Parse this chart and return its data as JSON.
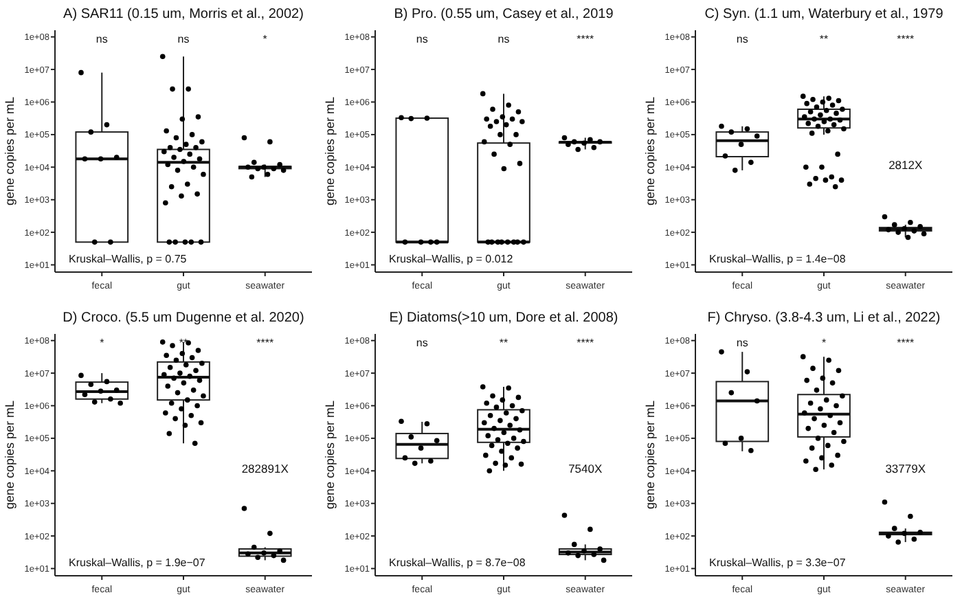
{
  "chart_data": [
    {
      "type": "box",
      "title": "A) SAR11 (0.15 um, Morris et al., 2002)",
      "ylabel": "gene copies per mL",
      "categories": [
        "fecal",
        "gut",
        "seawater"
      ],
      "log": true,
      "grid": false,
      "ylim": [
        6,
        160000000
      ],
      "yticks": [
        {
          "value": 10,
          "label": "1e+01"
        },
        {
          "value": 100,
          "label": "1e+02"
        },
        {
          "value": 1000,
          "label": "1e+03"
        },
        {
          "value": 10000,
          "label": "1e+04"
        },
        {
          "value": 100000,
          "label": "1e+05"
        },
        {
          "value": 1000000,
          "label": "1e+06"
        },
        {
          "value": 10000000,
          "label": "1e+07"
        },
        {
          "value": 100000000,
          "label": "1e+08"
        }
      ],
      "boxes": [
        {
          "low": 50,
          "q1": 50,
          "median": 18000,
          "q3": 120000,
          "high": 8000000
        },
        {
          "low": 50,
          "q1": 50,
          "median": 14000,
          "q3": 35000,
          "high": 25000000
        },
        {
          "low": 5000,
          "q1": 9000,
          "median": 10000,
          "q3": 10500,
          "high": 12000
        }
      ],
      "series": [
        {
          "type": "scatter",
          "color": "#000000",
          "x": [
            "fecal",
            "fecal",
            "fecal",
            "fecal",
            "fecal",
            "fecal",
            "fecal",
            "fecal"
          ],
          "values": [
            8000000.0,
            200000.0,
            120000.0,
            20000.0,
            18000.0,
            18000.0,
            50,
            50
          ]
        },
        {
          "type": "scatter",
          "color": "#000000",
          "x": [
            "gut",
            "gut",
            "gut",
            "gut",
            "gut",
            "gut",
            "gut",
            "gut",
            "gut",
            "gut",
            "gut",
            "gut",
            "gut",
            "gut",
            "gut",
            "gut",
            "gut",
            "gut",
            "gut",
            "gut",
            "gut",
            "gut",
            "gut",
            "gut",
            "gut",
            "gut",
            "gut",
            "gut",
            "gut",
            "gut",
            "gut",
            "gut"
          ],
          "values": [
            25000000.0,
            2500000.0,
            2500000.0,
            350000.0,
            300000.0,
            130000.0,
            100000.0,
            80000.0,
            60000.0,
            50000.0,
            40000.0,
            40000.0,
            35000.0,
            30000.0,
            25000.0,
            20000.0,
            18000.0,
            15000.0,
            12000.0,
            10000.0,
            8000.0,
            6000.0,
            3000.0,
            2500.0,
            1500.0,
            1300.0,
            800.0,
            50,
            50,
            50,
            50,
            50
          ]
        },
        {
          "type": "scatter",
          "color": "#000000",
          "x": [
            "seawater",
            "seawater",
            "seawater",
            "seawater",
            "seawater",
            "seawater",
            "seawater",
            "seawater",
            "seawater",
            "seawater",
            "seawater"
          ],
          "values": [
            80000.0,
            60000.0,
            14000.0,
            12000.0,
            10000.0,
            10000.0,
            9000.0,
            9000.0,
            8000.0,
            6000.0,
            5000.0
          ]
        }
      ],
      "annotations": [
        "ns",
        "ns",
        "*",
        "Kruskal–Wallis, p = 0.75"
      ]
    },
    {
      "type": "box",
      "title": "B) Pro. (0.55 um, Casey et al., 2019",
      "ylabel": "gene copies per mL",
      "categories": [
        "fecal",
        "gut",
        "seawater"
      ],
      "log": true,
      "grid": false,
      "ylim": [
        6,
        160000000
      ],
      "yticks": [
        {
          "value": 10,
          "label": "1e+01"
        },
        {
          "value": 100,
          "label": "1e+02"
        },
        {
          "value": 1000,
          "label": "1e+03"
        },
        {
          "value": 10000,
          "label": "1e+04"
        },
        {
          "value": 100000,
          "label": "1e+05"
        },
        {
          "value": 1000000,
          "label": "1e+06"
        },
        {
          "value": 10000000,
          "label": "1e+07"
        },
        {
          "value": 100000000,
          "label": "1e+08"
        }
      ],
      "boxes": [
        {
          "low": 50,
          "q1": 50,
          "median": 50,
          "q3": 320000,
          "high": 330000
        },
        {
          "low": 50,
          "q1": 50,
          "median": 50,
          "q3": 55000,
          "high": 1800000
        },
        {
          "low": 35000,
          "q1": 55000,
          "median": 58000,
          "q3": 60000,
          "high": 80000
        }
      ],
      "series": [
        {
          "type": "scatter",
          "color": "#000000",
          "x": [
            "fecal",
            "fecal",
            "fecal",
            "fecal",
            "fecal",
            "fecal",
            "fecal"
          ],
          "values": [
            330000.0,
            320000.0,
            310000.0,
            50,
            50,
            50,
            50
          ]
        },
        {
          "type": "scatter",
          "color": "#000000",
          "x": [
            "gut",
            "gut",
            "gut",
            "gut",
            "gut",
            "gut",
            "gut",
            "gut",
            "gut",
            "gut",
            "gut",
            "gut",
            "gut",
            "gut",
            "gut",
            "gut",
            "gut",
            "gut",
            "gut",
            "gut",
            "gut",
            "gut",
            "gut",
            "gut",
            "gut",
            "gut"
          ],
          "values": [
            1800000.0,
            800000.0,
            600000.0,
            500000.0,
            350000.0,
            300000.0,
            300000.0,
            250000.0,
            250000.0,
            200000.0,
            180000.0,
            100000.0,
            100000.0,
            60000.0,
            50000.0,
            25000.0,
            13000.0,
            9000.0,
            50,
            50,
            50,
            50,
            50,
            50,
            50,
            50
          ]
        },
        {
          "type": "scatter",
          "color": "#000000",
          "x": [
            "seawater",
            "seawater",
            "seawater",
            "seawater",
            "seawater",
            "seawater",
            "seawater",
            "seawater"
          ],
          "values": [
            80000.0,
            70000.0,
            60000.0,
            60000.0,
            55000.0,
            50000.0,
            40000.0,
            35000.0
          ]
        }
      ],
      "annotations": [
        "ns",
        "ns",
        "****",
        "Kruskal–Wallis, p = 0.012"
      ]
    },
    {
      "type": "box",
      "title": "C) Syn. (1.1 um, Waterbury et al., 1979",
      "ylabel": "gene copies per mL",
      "categories": [
        "fecal",
        "gut",
        "seawater"
      ],
      "log": true,
      "grid": false,
      "ylim": [
        6,
        160000000
      ],
      "yticks": [
        {
          "value": 10,
          "label": "1e+01"
        },
        {
          "value": 100,
          "label": "1e+02"
        },
        {
          "value": 1000,
          "label": "1e+03"
        },
        {
          "value": 10000,
          "label": "1e+04"
        },
        {
          "value": 100000,
          "label": "1e+05"
        },
        {
          "value": 1000000,
          "label": "1e+06"
        },
        {
          "value": 10000000,
          "label": "1e+07"
        },
        {
          "value": 100000000,
          "label": "1e+08"
        }
      ],
      "boxes": [
        {
          "low": 8000,
          "q1": 21000,
          "median": 65000,
          "q3": 120000,
          "high": 180000
        },
        {
          "low": 100000,
          "q1": 160000,
          "median": 300000,
          "q3": 600000,
          "high": 1500000
        },
        {
          "low": 70,
          "q1": 110,
          "median": 125,
          "q3": 140,
          "high": 170
        }
      ],
      "series": [
        {
          "type": "scatter",
          "color": "#000000",
          "x": [
            "fecal",
            "fecal",
            "fecal",
            "fecal",
            "fecal",
            "fecal",
            "fecal",
            "fecal"
          ],
          "values": [
            180000.0,
            150000.0,
            120000.0,
            90000.0,
            50000.0,
            22000.0,
            14000.0,
            8000.0
          ]
        },
        {
          "type": "scatter",
          "color": "#000000",
          "x": [
            "gut",
            "gut",
            "gut",
            "gut",
            "gut",
            "gut",
            "gut",
            "gut",
            "gut",
            "gut",
            "gut",
            "gut",
            "gut",
            "gut",
            "gut",
            "gut",
            "gut",
            "gut",
            "gut",
            "gut",
            "gut",
            "gut",
            "gut",
            "gut",
            "gut",
            "gut",
            "gut",
            "gut",
            "gut",
            "gut",
            "gut",
            "gut",
            "gut"
          ],
          "values": [
            1500000.0,
            1300000.0,
            1200000.0,
            1100000.0,
            1000000.0,
            900000.0,
            800000.0,
            700000.0,
            600000.0,
            550000.0,
            500000.0,
            450000.0,
            400000.0,
            350000.0,
            300000.0,
            300000.0,
            280000.0,
            250000.0,
            220000.0,
            200000.0,
            180000.0,
            150000.0,
            130000.0,
            110000.0,
            25000.0,
            10000.0,
            10000.0,
            5000.0,
            4500.0,
            4000.0,
            4000.0,
            3000.0,
            2500.0
          ]
        },
        {
          "type": "scatter",
          "color": "#000000",
          "x": [
            "seawater",
            "seawater",
            "seawater",
            "seawater",
            "seawater",
            "seawater",
            "seawater",
            "seawater",
            "seawater",
            "seawater"
          ],
          "values": [
            300,
            200,
            170,
            150,
            130,
            120,
            110,
            100,
            90,
            70
          ]
        }
      ],
      "annotations": [
        "ns",
        "**",
        "****",
        "2812X",
        "Kruskal–Wallis, p = 1.4e−08"
      ]
    },
    {
      "type": "box",
      "title": "D) Croco. (5.5 um Dugenne et al. 2020)",
      "ylabel": "gene copies per mL",
      "categories": [
        "fecal",
        "gut",
        "seawater"
      ],
      "log": true,
      "grid": false,
      "ylim": [
        6,
        160000000
      ],
      "yticks": [
        {
          "value": 10,
          "label": "1e+01"
        },
        {
          "value": 100,
          "label": "1e+02"
        },
        {
          "value": 1000,
          "label": "1e+03"
        },
        {
          "value": 10000,
          "label": "1e+04"
        },
        {
          "value": 100000,
          "label": "1e+05"
        },
        {
          "value": 1000000,
          "label": "1e+06"
        },
        {
          "value": 10000000,
          "label": "1e+07"
        },
        {
          "value": 100000000,
          "label": "1e+08"
        }
      ],
      "boxes": [
        {
          "low": 1200000,
          "q1": 1600000,
          "median": 2700000,
          "q3": 5300000,
          "high": 10000000
        },
        {
          "low": 70000,
          "q1": 1500000,
          "median": 7500000,
          "q3": 22000000,
          "high": 90000000
        },
        {
          "low": 18,
          "q1": 24,
          "median": 30,
          "q3": 40,
          "high": 45
        }
      ],
      "series": [
        {
          "type": "scatter",
          "color": "#000000",
          "x": [
            "fecal",
            "fecal",
            "fecal",
            "fecal",
            "fecal",
            "fecal",
            "fecal",
            "fecal",
            "fecal"
          ],
          "values": [
            8500000.0,
            5500000.0,
            4500000.0,
            3000000.0,
            2800000.0,
            2200000.0,
            1600000.0,
            1300000.0,
            1200000.0
          ]
        },
        {
          "type": "scatter",
          "color": "#000000",
          "x": [
            "gut",
            "gut",
            "gut",
            "gut",
            "gut",
            "gut",
            "gut",
            "gut",
            "gut",
            "gut",
            "gut",
            "gut",
            "gut",
            "gut",
            "gut",
            "gut",
            "gut",
            "gut",
            "gut",
            "gut",
            "gut",
            "gut",
            "gut",
            "gut",
            "gut",
            "gut",
            "gut",
            "gut",
            "gut",
            "gut",
            "gut",
            "gut",
            "gut"
          ],
          "values": [
            90000000.0,
            85000000.0,
            70000000.0,
            50000000.0,
            40000000.0,
            35000000.0,
            30000000.0,
            25000000.0,
            20000000.0,
            18000000.0,
            15000000.0,
            12000000.0,
            10000000.0,
            9000000.0,
            8000000.0,
            7000000.0,
            6000000.0,
            5000000.0,
            4000000.0,
            3000000.0,
            2500000.0,
            2000000.0,
            1500000.0,
            1200000.0,
            1000000.0,
            800000.0,
            600000.0,
            500000.0,
            400000.0,
            300000.0,
            250000.0,
            140000.0,
            70000.0
          ]
        },
        {
          "type": "scatter",
          "color": "#000000",
          "x": [
            "seawater",
            "seawater",
            "seawater",
            "seawater",
            "seawater",
            "seawater",
            "seawater",
            "seawater",
            "seawater"
          ],
          "values": [
            700,
            120,
            45,
            35,
            30,
            28,
            25,
            22,
            18
          ]
        }
      ],
      "annotations": [
        "*",
        "**",
        "****",
        "282891X",
        "Kruskal–Wallis, p = 1.9e−07"
      ]
    },
    {
      "type": "box",
      "title": "E) Diatoms(>10 um, Dore et al. 2008)",
      "ylabel": "gene copies per mL",
      "categories": [
        "fecal",
        "gut",
        "seawater"
      ],
      "log": true,
      "grid": false,
      "ylim": [
        6,
        160000000
      ],
      "yticks": [
        {
          "value": 10,
          "label": "1e+01"
        },
        {
          "value": 100,
          "label": "1e+02"
        },
        {
          "value": 1000,
          "label": "1e+03"
        },
        {
          "value": 10000,
          "label": "1e+04"
        },
        {
          "value": 100000,
          "label": "1e+05"
        },
        {
          "value": 1000000,
          "label": "1e+06"
        },
        {
          "value": 10000000,
          "label": "1e+07"
        },
        {
          "value": 100000000,
          "label": "1e+08"
        }
      ],
      "boxes": [
        {
          "low": 17000,
          "q1": 24000,
          "median": 65000,
          "q3": 140000,
          "high": 320000
        },
        {
          "low": 10000,
          "q1": 75000,
          "median": 190000,
          "q3": 750000,
          "high": 3800000
        },
        {
          "low": 18,
          "q1": 27,
          "median": 32,
          "q3": 40,
          "high": 55
        }
      ],
      "series": [
        {
          "type": "scatter",
          "color": "#000000",
          "x": [
            "fecal",
            "fecal",
            "fecal",
            "fecal",
            "fecal",
            "fecal",
            "fecal",
            "fecal"
          ],
          "values": [
            330000.0,
            280000.0,
            110000.0,
            85000.0,
            50000.0,
            25000.0,
            20000.0,
            17000.0
          ]
        },
        {
          "type": "scatter",
          "color": "#000000",
          "x": [
            "gut",
            "gut",
            "gut",
            "gut",
            "gut",
            "gut",
            "gut",
            "gut",
            "gut",
            "gut",
            "gut",
            "gut",
            "gut",
            "gut",
            "gut",
            "gut",
            "gut",
            "gut",
            "gut",
            "gut",
            "gut",
            "gut",
            "gut",
            "gut",
            "gut",
            "gut",
            "gut",
            "gut",
            "gut",
            "gut",
            "gut",
            "gut"
          ],
          "values": [
            3800000.0,
            3500000.0,
            2000000.0,
            1800000.0,
            1500000.0,
            1200000.0,
            1000000.0,
            900000.0,
            700000.0,
            600000.0,
            500000.0,
            400000.0,
            350000.0,
            300000.0,
            250000.0,
            200000.0,
            180000.0,
            150000.0,
            120000.0,
            100000.0,
            90000.0,
            80000.0,
            70000.0,
            60000.0,
            50000.0,
            40000.0,
            30000.0,
            25000.0,
            17000.0,
            16000.0,
            15000.0,
            10000.0
          ]
        },
        {
          "type": "scatter",
          "color": "#000000",
          "x": [
            "seawater",
            "seawater",
            "seawater",
            "seawater",
            "seawater",
            "seawater",
            "seawater",
            "seawater",
            "seawater"
          ],
          "values": [
            430,
            160,
            55,
            40,
            35,
            30,
            27,
            25,
            18
          ]
        }
      ],
      "annotations": [
        "ns",
        "**",
        "****",
        "7540X",
        "Kruskal–Wallis, p = 8.7e−08"
      ]
    },
    {
      "type": "box",
      "title": "F) Chryso. (3.8-4.3 um, Li et al., 2022)",
      "ylabel": "gene copies per mL",
      "categories": [
        "fecal",
        "gut",
        "seawater"
      ],
      "log": true,
      "grid": false,
      "ylim": [
        6,
        160000000
      ],
      "yticks": [
        {
          "value": 10,
          "label": "1e+01"
        },
        {
          "value": 100,
          "label": "1e+02"
        },
        {
          "value": 1000,
          "label": "1e+03"
        },
        {
          "value": 10000,
          "label": "1e+04"
        },
        {
          "value": 100000,
          "label": "1e+05"
        },
        {
          "value": 1000000,
          "label": "1e+06"
        },
        {
          "value": 10000000,
          "label": "1e+07"
        },
        {
          "value": 100000000,
          "label": "1e+08"
        }
      ],
      "boxes": [
        {
          "low": 40000,
          "q1": 80000,
          "median": 1400000,
          "q3": 5500000,
          "high": 45000000
        },
        {
          "low": 11000,
          "q1": 110000,
          "median": 550000,
          "q3": 2200000,
          "high": 32000000
        },
        {
          "low": 65,
          "q1": 110,
          "median": 120,
          "q3": 130,
          "high": 170
        }
      ],
      "series": [
        {
          "type": "scatter",
          "color": "#000000",
          "x": [
            "fecal",
            "fecal",
            "fecal",
            "fecal",
            "fecal",
            "fecal",
            "fecal"
          ],
          "values": [
            45000000.0,
            11000000.0,
            2500000.0,
            1400000.0,
            100000.0,
            70000.0,
            42000.0
          ]
        },
        {
          "type": "scatter",
          "color": "#000000",
          "x": [
            "gut",
            "gut",
            "gut",
            "gut",
            "gut",
            "gut",
            "gut",
            "gut",
            "gut",
            "gut",
            "gut",
            "gut",
            "gut",
            "gut",
            "gut",
            "gut",
            "gut",
            "gut",
            "gut",
            "gut",
            "gut",
            "gut",
            "gut",
            "gut",
            "gut",
            "gut",
            "gut",
            "gut",
            "gut"
          ],
          "values": [
            32000000.0,
            25000000.0,
            14000000.0,
            12000000.0,
            7000000.0,
            6000000.0,
            5000000.0,
            3000000.0,
            2000000.0,
            1500000.0,
            1200000.0,
            1000000.0,
            800000.0,
            600000.0,
            500000.0,
            400000.0,
            300000.0,
            250000.0,
            200000.0,
            150000.0,
            100000.0,
            80000.0,
            60000.0,
            50000.0,
            30000.0,
            25000.0,
            20000.0,
            15000.0,
            11000.0
          ]
        },
        {
          "type": "scatter",
          "color": "#000000",
          "x": [
            "seawater",
            "seawater",
            "seawater",
            "seawater",
            "seawater",
            "seawater",
            "seawater",
            "seawater"
          ],
          "values": [
            1100,
            400,
            170,
            130,
            120,
            100,
            80,
            65
          ]
        }
      ],
      "annotations": [
        "ns",
        "*",
        "****",
        "33779X",
        "Kruskal–Wallis, p = 3.3e−07"
      ]
    }
  ]
}
